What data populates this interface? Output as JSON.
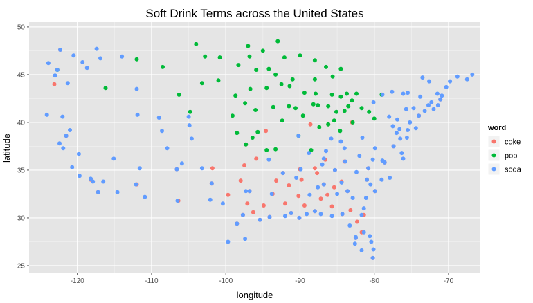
{
  "chart_data": {
    "type": "scatter",
    "title": "Soft Drink Terms across the United States",
    "xlabel": "longitude",
    "ylabel": "latitude",
    "xlim": [
      -126.5,
      -65.8
    ],
    "ylim": [
      24.2,
      50.5
    ],
    "x_ticks": [
      -120,
      -110,
      -100,
      -90,
      -80,
      -70
    ],
    "x_tick_labels": [
      "-120",
      "-110",
      "-100",
      "-90",
      "-80",
      "-70"
    ],
    "y_ticks": [
      25,
      30,
      35,
      40,
      45,
      50
    ],
    "y_tick_labels": [
      "25",
      "30",
      "35",
      "40",
      "45",
      "50"
    ],
    "grid": true,
    "background": "#e5e5e5",
    "legend": {
      "title": "word",
      "placement": "right"
    },
    "series": [
      {
        "name": "coke",
        "color": "#f8766d",
        "points": [
          [
            -97.5,
            35.5
          ],
          [
            -96.8,
            32.8
          ],
          [
            -95.4,
            29.8
          ],
          [
            -90.1,
            30.0
          ],
          [
            -86.8,
            33.5
          ],
          [
            -84.4,
            33.8
          ],
          [
            -81.7,
            28.5
          ],
          [
            -82.5,
            27.9
          ],
          [
            -80.2,
            25.8
          ],
          [
            -90.2,
            32.3
          ],
          [
            -92.3,
            34.7
          ],
          [
            -86.3,
            32.4
          ],
          [
            -83.6,
            32.8
          ],
          [
            -98.5,
            29.4
          ],
          [
            -97.7,
            30.3
          ],
          [
            -94.1,
            30.1
          ],
          [
            -91.2,
            30.5
          ],
          [
            -88.0,
            30.7
          ],
          [
            -85.7,
            31.2
          ],
          [
            -87.7,
            34.7
          ],
          [
            -89.4,
            31.3
          ],
          [
            -93.7,
            32.5
          ],
          [
            -95.9,
            36.2
          ],
          [
            -94.6,
            39.1
          ],
          [
            -97.3,
            37.7
          ],
          [
            -101.8,
            35.2
          ],
          [
            -106.6,
            35.1
          ],
          [
            -112.0,
            33.5
          ],
          [
            -118.2,
            34.0
          ],
          [
            -122.3,
            47.6
          ],
          [
            -84.0,
            35.9
          ],
          [
            -85.3,
            35.0
          ],
          [
            -86.6,
            36.1
          ],
          [
            -88.0,
            35.2
          ],
          [
            -90.0,
            35.1
          ],
          [
            -92.0,
            31.5
          ],
          [
            -94.9,
            31.3
          ],
          [
            -96.3,
            30.6
          ],
          [
            -97.1,
            31.5
          ],
          [
            -98.0,
            33.9
          ],
          [
            -99.7,
            32.4
          ],
          [
            -101.9,
            33.6
          ],
          [
            -106.4,
            31.8
          ],
          [
            -84.3,
            30.4
          ],
          [
            -82.3,
            29.6
          ],
          [
            -81.4,
            30.3
          ],
          [
            -83.2,
            30.8
          ],
          [
            -85.4,
            33.2
          ],
          [
            -87.2,
            32.0
          ],
          [
            -89.8,
            34.0
          ],
          [
            -91.5,
            33.4
          ],
          [
            -93.2,
            33.9
          ],
          [
            -80.8,
            35.2
          ],
          [
            -78.6,
            35.8
          ],
          [
            -81.0,
            34.0
          ],
          [
            -79.9,
            32.8
          ],
          [
            -77.4,
            37.5
          ],
          [
            -123.1,
            44.0
          ],
          [
            -121.5,
            38.6
          ],
          [
            -117.2,
            32.7
          ],
          [
            -74.0,
            40.7
          ],
          [
            -71.1,
            42.4
          ],
          [
            -88.6,
            39.8
          ],
          [
            -86.2,
            39.8
          ],
          [
            -83.0,
            40.0
          ]
        ]
      },
      {
        "name": "pop",
        "color": "#00ba38",
        "points": [
          [
            -93.3,
            45.0
          ],
          [
            -93.6,
            41.6
          ],
          [
            -96.0,
            41.3
          ],
          [
            -90.2,
            38.6
          ],
          [
            -87.9,
            43.0
          ],
          [
            -89.4,
            43.1
          ],
          [
            -84.5,
            42.7
          ],
          [
            -83.0,
            42.3
          ],
          [
            -85.7,
            42.9
          ],
          [
            -86.2,
            41.7
          ],
          [
            -84.6,
            39.1
          ],
          [
            -82.9,
            40.0
          ],
          [
            -81.7,
            41.5
          ],
          [
            -80.0,
            40.4
          ],
          [
            -85.1,
            41.1
          ],
          [
            -88.2,
            41.9
          ],
          [
            -91.5,
            41.7
          ],
          [
            -92.1,
            46.8
          ],
          [
            -96.8,
            46.9
          ],
          [
            -98.3,
            46.0
          ],
          [
            -100.8,
            46.8
          ],
          [
            -96.7,
            43.5
          ],
          [
            -103.2,
            44.1
          ],
          [
            -97.4,
            42.0
          ],
          [
            -99.1,
            40.7
          ],
          [
            -95.7,
            39.0
          ],
          [
            -97.3,
            37.7
          ],
          [
            -98.5,
            38.9
          ],
          [
            -94.5,
            43.6
          ],
          [
            -91.0,
            44.5
          ],
          [
            -88.0,
            44.5
          ],
          [
            -86.5,
            45.8
          ],
          [
            -84.5,
            45.6
          ],
          [
            -85.6,
            44.8
          ],
          [
            -83.7,
            43.0
          ],
          [
            -82.4,
            43.0
          ],
          [
            -84.0,
            41.2
          ],
          [
            -83.5,
            41.7
          ],
          [
            -80.7,
            41.1
          ],
          [
            -79.0,
            42.9
          ],
          [
            -112.0,
            46.6
          ],
          [
            -116.2,
            43.6
          ],
          [
            -122.7,
            45.5
          ],
          [
            -104.8,
            41.1
          ],
          [
            -106.3,
            42.9
          ],
          [
            -108.5,
            45.8
          ],
          [
            -95.0,
            47.5
          ],
          [
            -94.2,
            45.6
          ],
          [
            -92.5,
            44.0
          ],
          [
            -90.6,
            41.5
          ],
          [
            -89.6,
            40.7
          ],
          [
            -87.6,
            41.8
          ],
          [
            -86.2,
            39.8
          ],
          [
            -85.4,
            40.2
          ],
          [
            -87.4,
            39.5
          ],
          [
            -88.5,
            37.1
          ],
          [
            -93.3,
            37.2
          ],
          [
            -94.5,
            37.1
          ],
          [
            -96.4,
            38.4
          ],
          [
            -98.7,
            42.8
          ],
          [
            -101.0,
            44.4
          ],
          [
            -97.0,
            48.0
          ],
          [
            -93.0,
            48.5
          ],
          [
            -90.0,
            47.0
          ],
          [
            -88.0,
            46.5
          ],
          [
            -102.8,
            46.9
          ],
          [
            -104.0,
            48.2
          ],
          [
            -92.4,
            40.2
          ],
          [
            -91.4,
            43.8
          ],
          [
            -95.9,
            45.5
          ]
        ]
      },
      {
        "name": "soda",
        "color": "#619cff",
        "points": [
          [
            -118.2,
            34.1
          ],
          [
            -122.4,
            37.8
          ],
          [
            -121.9,
            37.3
          ],
          [
            -117.2,
            32.7
          ],
          [
            -119.8,
            36.7
          ],
          [
            -121.5,
            38.6
          ],
          [
            -122.3,
            47.6
          ],
          [
            -122.7,
            45.5
          ],
          [
            -123.0,
            44.9
          ],
          [
            -117.4,
            47.7
          ],
          [
            -111.9,
            40.8
          ],
          [
            -112.1,
            33.5
          ],
          [
            -110.9,
            32.2
          ],
          [
            -115.1,
            36.2
          ],
          [
            -104.9,
            39.7
          ],
          [
            -105.0,
            40.6
          ],
          [
            -106.6,
            35.1
          ],
          [
            -105.9,
            35.7
          ],
          [
            -74.0,
            40.7
          ],
          [
            -73.8,
            42.7
          ],
          [
            -71.1,
            42.4
          ],
          [
            -71.4,
            41.8
          ],
          [
            -72.7,
            41.8
          ],
          [
            -75.2,
            40.0
          ],
          [
            -76.6,
            39.3
          ],
          [
            -77.0,
            38.9
          ],
          [
            -77.4,
            37.5
          ],
          [
            -76.3,
            36.8
          ],
          [
            -78.6,
            35.8
          ],
          [
            -80.8,
            35.2
          ],
          [
            -81.0,
            34.0
          ],
          [
            -79.9,
            32.8
          ],
          [
            -81.1,
            32.1
          ],
          [
            -81.7,
            30.3
          ],
          [
            -81.4,
            28.5
          ],
          [
            -82.5,
            27.9
          ],
          [
            -80.2,
            25.8
          ],
          [
            -80.1,
            26.7
          ],
          [
            -84.3,
            30.4
          ],
          [
            -87.2,
            30.4
          ],
          [
            -88.0,
            30.7
          ],
          [
            -90.1,
            30.0
          ],
          [
            -91.2,
            30.5
          ],
          [
            -93.8,
            32.5
          ],
          [
            -95.4,
            29.8
          ],
          [
            -97.7,
            30.3
          ],
          [
            -98.5,
            29.4
          ],
          [
            -96.8,
            32.8
          ],
          [
            -97.3,
            32.8
          ],
          [
            -101.9,
            33.6
          ],
          [
            -106.5,
            31.8
          ],
          [
            -84.4,
            33.7
          ],
          [
            -86.8,
            33.5
          ],
          [
            -85.8,
            38.3
          ],
          [
            -84.5,
            38.0
          ],
          [
            -86.8,
            36.2
          ],
          [
            -89.9,
            35.1
          ],
          [
            -90.2,
            38.6
          ],
          [
            -81.6,
            38.4
          ],
          [
            -79.9,
            37.3
          ],
          [
            -70.3,
            43.7
          ],
          [
            -71.5,
            43.0
          ],
          [
            -72.6,
            44.3
          ],
          [
            -69.8,
            44.3
          ],
          [
            -68.8,
            44.8
          ],
          [
            -75.5,
            43.1
          ],
          [
            -76.1,
            43.0
          ],
          [
            -77.6,
            43.2
          ],
          [
            -78.9,
            42.9
          ],
          [
            -80.1,
            42.1
          ],
          [
            -82.5,
            28.0
          ],
          [
            -81.7,
            26.6
          ],
          [
            -80.4,
            27.5
          ],
          [
            -82.6,
            27.3
          ],
          [
            -80.6,
            28.1
          ],
          [
            -122.0,
            40.6
          ],
          [
            -120.7,
            35.3
          ],
          [
            -119.7,
            34.4
          ],
          [
            -117.9,
            33.8
          ],
          [
            -116.5,
            33.8
          ],
          [
            -123.9,
            46.2
          ],
          [
            -124.1,
            40.8
          ],
          [
            -121.3,
            44.1
          ],
          [
            -119.3,
            46.3
          ],
          [
            -114.0,
            46.9
          ],
          [
            -116.9,
            46.7
          ],
          [
            -112.0,
            43.5
          ],
          [
            -109.0,
            40.5
          ],
          [
            -108.6,
            39.1
          ],
          [
            -107.9,
            37.3
          ],
          [
            -104.6,
            38.3
          ],
          [
            -103.2,
            35.2
          ],
          [
            -102.1,
            31.9
          ],
          [
            -100.4,
            31.5
          ],
          [
            -99.7,
            27.5
          ],
          [
            -97.4,
            27.8
          ],
          [
            -94.1,
            30.1
          ],
          [
            -92.0,
            30.2
          ],
          [
            -89.1,
            30.4
          ],
          [
            -85.7,
            30.2
          ],
          [
            -83.3,
            29.2
          ],
          [
            -81.4,
            31.0
          ],
          [
            -82.9,
            32.1
          ],
          [
            -83.6,
            32.8
          ],
          [
            -85.0,
            32.5
          ],
          [
            -87.6,
            33.2
          ],
          [
            -88.7,
            32.4
          ],
          [
            -90.5,
            34.2
          ],
          [
            -92.3,
            34.7
          ],
          [
            -94.2,
            36.1
          ],
          [
            -76.5,
            38.3
          ],
          [
            -75.5,
            39.2
          ],
          [
            -74.4,
            39.4
          ],
          [
            -75.6,
            38.4
          ],
          [
            -76.1,
            36.2
          ],
          [
            -77.9,
            34.2
          ],
          [
            -79.0,
            34.0
          ],
          [
            -80.5,
            33.5
          ],
          [
            -82.4,
            34.8
          ],
          [
            -83.9,
            35.9
          ],
          [
            -85.3,
            35.0
          ],
          [
            -87.0,
            35.6
          ],
          [
            -88.8,
            36.8
          ],
          [
            -86.5,
            37.0
          ],
          [
            -84.0,
            37.3
          ],
          [
            -82.0,
            36.5
          ],
          [
            -80.2,
            36.1
          ],
          [
            -78.9,
            36.0
          ],
          [
            -77.5,
            39.6
          ],
          [
            -78.0,
            40.6
          ],
          [
            -76.9,
            40.3
          ],
          [
            -75.7,
            41.4
          ],
          [
            -74.7,
            41.5
          ],
          [
            -73.2,
            41.2
          ],
          [
            -72.0,
            41.4
          ],
          [
            -66.8,
            45.0
          ],
          [
            -67.5,
            44.5
          ],
          [
            -70.9,
            42.8
          ],
          [
            -72.3,
            42.1
          ],
          [
            -73.5,
            44.7
          ],
          [
            -120.5,
            47.0
          ],
          [
            -118.7,
            45.7
          ],
          [
            -121.0,
            39.2
          ],
          [
            -114.6,
            32.7
          ],
          [
            -111.6,
            35.2
          ]
        ]
      }
    ]
  }
}
